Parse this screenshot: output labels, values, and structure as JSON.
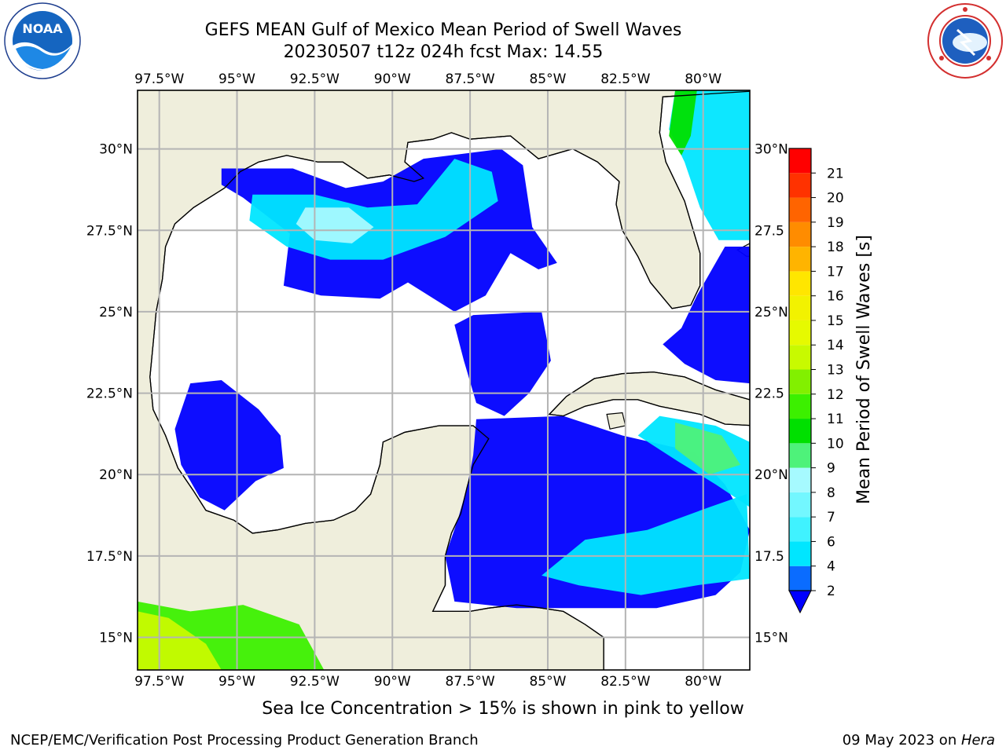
{
  "title_line1": "GEFS MEAN Gulf of Mexico Mean Period of Swell Waves",
  "title_line2": "20230507 t12z 024h fcst   Max: 14.55",
  "caption": "Sea Ice Concentration > 15% is shown in pink to yellow",
  "footer_left": "NCEP/EMC/Verification Post Processing Product Generation Branch",
  "footer_date": "09 May 2023 on ",
  "footer_machine": "Hera",
  "logos": {
    "left": "noaa-logo",
    "right": "nws-logo"
  },
  "map": {
    "lon_labels": [
      "97.5°W",
      "95°W",
      "92.5°W",
      "90°W",
      "87.5°W",
      "85°W",
      "82.5°W",
      "80°W"
    ],
    "lon_values": [
      -97.5,
      -95,
      -92.5,
      -90,
      -87.5,
      -85,
      -82.5,
      -80
    ],
    "lat_labels_left": [
      "30°N",
      "27.5°N",
      "25°N",
      "22.5°N",
      "20°N",
      "17.5°N",
      "15°N"
    ],
    "lat_labels_right": [
      "30°N",
      "27.5",
      "25°N",
      "22.5",
      "20°N",
      "17.5",
      "15°N"
    ],
    "lat_values": [
      30,
      27.5,
      25,
      22.5,
      20,
      17.5,
      15
    ],
    "extent": {
      "lon_min": -98.2,
      "lon_max": -78.5,
      "lat_min": 14.0,
      "lat_max": 31.8
    },
    "land_color": "#efeedc",
    "ocean_color": "#ffffff",
    "grid_color": "#b4b4b4"
  },
  "colorbar": {
    "label": "Mean Period of Swell Waves [s]",
    "tick_labels": [
      "2",
      "4",
      "6",
      "7",
      "8",
      "9",
      "10",
      "11",
      "12",
      "13",
      "14",
      "15",
      "16",
      "17",
      "18",
      "19",
      "20",
      "21"
    ],
    "colors": [
      "#0a6cff",
      "#00e6ff",
      "#40f2ff",
      "#73f7ff",
      "#a6faff",
      "#4ef27a",
      "#00e000",
      "#3cf000",
      "#82f000",
      "#c8fa00",
      "#e6fa00",
      "#f2f200",
      "#ffe600",
      "#ffb400",
      "#ff8c00",
      "#ff6400",
      "#ff3200",
      "#ff0000"
    ],
    "under_color": "#0000ff"
  }
}
